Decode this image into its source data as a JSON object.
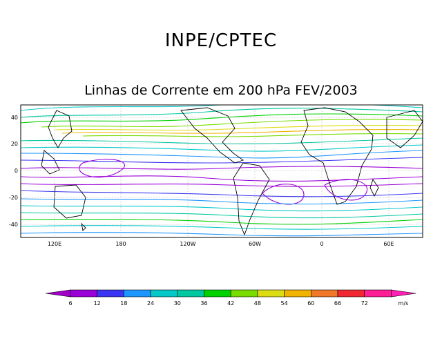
{
  "header": {
    "organization": "INPE/CPTEC"
  },
  "map": {
    "title": "Linhas de Corrente em 200 hPa FEV/2003",
    "lat_ticks": [
      "40",
      "20",
      "0",
      "-20",
      "-40"
    ],
    "lon_ticks": [
      "120E",
      "180",
      "120W",
      "60W",
      "0",
      "60E"
    ],
    "grid": true
  },
  "colorbar": {
    "unit": "m/s",
    "ticks": [
      "6",
      "12",
      "18",
      "24",
      "30",
      "36",
      "42",
      "48",
      "54",
      "60",
      "66",
      "72"
    ],
    "colors": [
      "#9a00d8",
      "#3a35f2",
      "#1e96ff",
      "#06c8c8",
      "#00c8a0",
      "#00d200",
      "#78dc00",
      "#dcdc14",
      "#f0b400",
      "#f07828",
      "#f02832",
      "#ff1e96"
    ],
    "under_color": "#a000c8",
    "over_color": "#ff1eb4"
  }
}
